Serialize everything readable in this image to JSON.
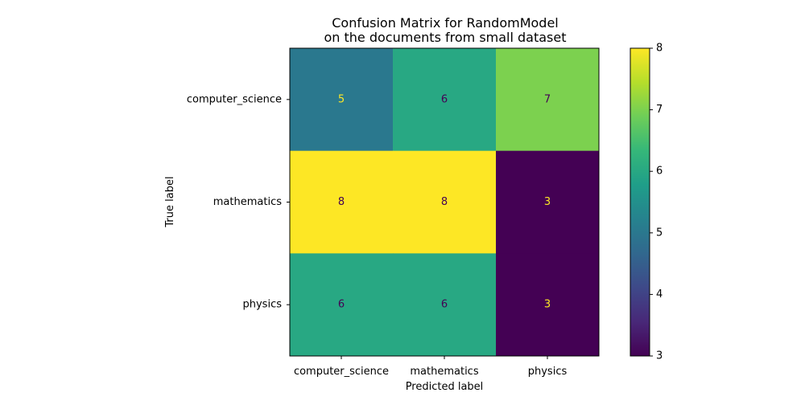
{
  "chart_data": {
    "type": "heatmap",
    "title": "Confusion Matrix for RandomModel\non the documents from small dataset",
    "title_lines": [
      "Confusion Matrix for RandomModel",
      "on the documents from small dataset"
    ],
    "xlabel": "Predicted label",
    "ylabel": "True label",
    "x_categories": [
      "computer_science",
      "mathematics",
      "physics"
    ],
    "y_categories": [
      "computer_science",
      "mathematics",
      "physics"
    ],
    "values": [
      [
        5,
        6,
        7
      ],
      [
        8,
        8,
        3
      ],
      [
        6,
        6,
        3
      ]
    ],
    "colormap": "viridis",
    "color_range": [
      3,
      8
    ],
    "colorbar_ticks": [
      "3",
      "4",
      "5",
      "6",
      "7",
      "8"
    ],
    "grid": false
  }
}
